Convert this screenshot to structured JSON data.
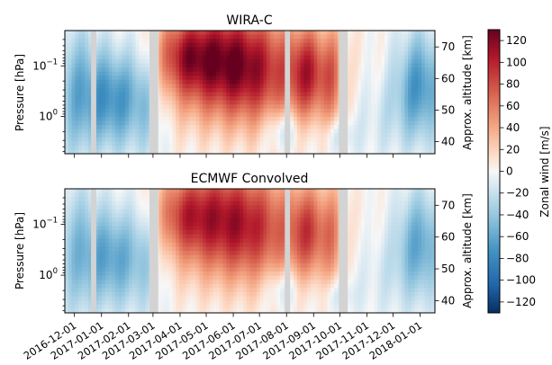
{
  "chart_data": [
    {
      "type": "heatmap",
      "title": "WIRA-C",
      "xlabel": "",
      "ylabel": "Pressure [hPa]",
      "ylabel_right": "Approx. altitude [km]",
      "x_ticks": [
        "2016-12-01",
        "2017-01-01",
        "2017-02-01",
        "2017-03-01",
        "2017-04-01",
        "2017-05-01",
        "2017-06-01",
        "2017-07-01",
        "2017-08-01",
        "2017-09-01",
        "2017-10-01",
        "2017-11-01",
        "2017-12-01",
        "2018-01-01"
      ],
      "x_range": [
        "2016-11-20",
        "2018-01-18"
      ],
      "y_scale": "log",
      "y_range_hpa": [
        0.02,
        5.5
      ],
      "y_ticks": [
        {
          "value": 0.1,
          "base": "10",
          "exp": "−1"
        },
        {
          "value": 1,
          "base": "10",
          "exp": "0"
        }
      ],
      "alt_ticks": [
        "40",
        "50",
        "60",
        "70"
      ],
      "missing_periods": [
        [
          "2016-12-20",
          "2016-12-26"
        ],
        [
          "2017-02-25",
          "2017-03-07"
        ],
        [
          "2017-07-30",
          "2017-08-05"
        ],
        [
          "2017-09-30",
          "2017-10-10"
        ]
      ]
    },
    {
      "type": "heatmap",
      "title": "ECMWF Convolved",
      "xlabel": "",
      "ylabel": "Pressure [hPa]",
      "ylabel_right": "Approx. altitude [km]",
      "x_ticks": [
        "2016-12-01",
        "2017-01-01",
        "2017-02-01",
        "2017-03-01",
        "2017-04-01",
        "2017-05-01",
        "2017-06-01",
        "2017-07-01",
        "2017-08-01",
        "2017-09-01",
        "2017-10-01",
        "2017-11-01",
        "2017-12-01",
        "2018-01-01"
      ],
      "x_range": [
        "2016-11-20",
        "2018-01-18"
      ],
      "y_scale": "log",
      "y_range_hpa": [
        0.02,
        5.5
      ],
      "y_ticks": [
        {
          "value": 0.1,
          "base": "10",
          "exp": "−1"
        },
        {
          "value": 1,
          "base": "10",
          "exp": "0"
        }
      ],
      "alt_ticks": [
        "40",
        "50",
        "60",
        "70"
      ],
      "missing_periods": [
        [
          "2016-12-20",
          "2016-12-26"
        ],
        [
          "2017-02-25",
          "2017-03-07"
        ],
        [
          "2017-07-30",
          "2017-08-05"
        ],
        [
          "2017-09-30",
          "2017-10-10"
        ]
      ]
    }
  ],
  "colorbar": {
    "label": "Zonal wind [m/s]",
    "range": [
      -130,
      130
    ],
    "ticks": [
      "120",
      "100",
      "80",
      "60",
      "40",
      "20",
      "0",
      "−20",
      "−40",
      "−60",
      "−80",
      "−100",
      "−120"
    ],
    "colormap": "RdBu_r",
    "missing_color": "#d3d3d3"
  }
}
